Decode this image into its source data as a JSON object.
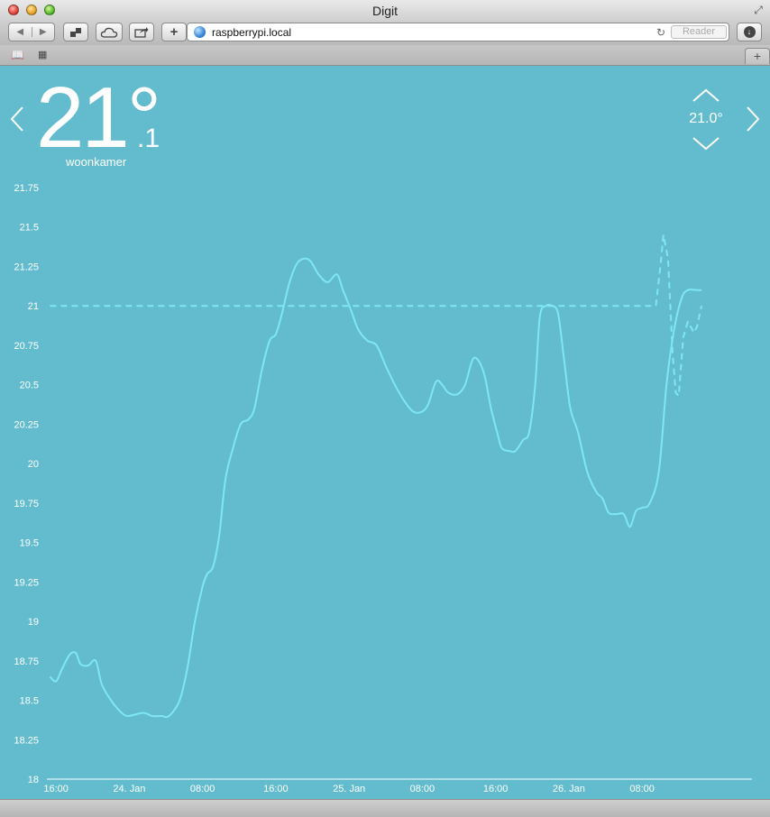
{
  "window": {
    "title": "Digit"
  },
  "toolbar": {
    "url": "raspberrypi.local",
    "reader_label": "Reader"
  },
  "thermostat": {
    "current_integer": "21°",
    "current_fraction": ".1",
    "room": "woonkamer",
    "setpoint": "21.0°"
  },
  "icons": {
    "prev": "chevron-left-icon",
    "next": "chevron-right-icon",
    "setpoint_up": "chevron-up-icon",
    "setpoint_down": "chevron-down-icon"
  },
  "colors": {
    "background": "#62bccd",
    "measured_line": "#7fe6f6",
    "setpoint_line": "#7fe6f6",
    "text": "#ffffff"
  },
  "chart_data": {
    "type": "line",
    "ylim": [
      18,
      21.75
    ],
    "y_ticks": [
      "18",
      "18.25",
      "18.5",
      "18.75",
      "19",
      "19.25",
      "19.5",
      "19.75",
      "20",
      "20.25",
      "20.5",
      "20.75",
      "21",
      "21.25",
      "21.5",
      "21.75"
    ],
    "x_axis_type": "datetime",
    "xlim": [
      "2014-01-23T15:00",
      "2014-01-26T20:00"
    ],
    "x_ticks": [
      {
        "label": "16:00",
        "t": "2014-01-23T16:00"
      },
      {
        "label": "24. Jan",
        "t": "2014-01-24T00:00"
      },
      {
        "label": "08:00",
        "t": "2014-01-24T08:00"
      },
      {
        "label": "16:00",
        "t": "2014-01-24T16:00"
      },
      {
        "label": "25. Jan",
        "t": "2014-01-25T00:00"
      },
      {
        "label": "08:00",
        "t": "2014-01-25T08:00"
      },
      {
        "label": "16:00",
        "t": "2014-01-25T16:00"
      },
      {
        "label": "26. Jan",
        "t": "2014-01-26T00:00"
      },
      {
        "label": "08:00",
        "t": "2014-01-26T08:00"
      }
    ],
    "grid": false,
    "series": [
      {
        "style": "solid",
        "points": [
          [
            "2014-01-23T15:20",
            18.65
          ],
          [
            "2014-01-23T16:00",
            18.62
          ],
          [
            "2014-01-23T16:40",
            18.7
          ],
          [
            "2014-01-23T17:30",
            18.79
          ],
          [
            "2014-01-23T18:10",
            18.8
          ],
          [
            "2014-01-23T18:40",
            18.73
          ],
          [
            "2014-01-23T19:30",
            18.72
          ],
          [
            "2014-01-23T20:20",
            18.75
          ],
          [
            "2014-01-23T21:00",
            18.6
          ],
          [
            "2014-01-23T22:00",
            18.5
          ],
          [
            "2014-01-23T23:00",
            18.43
          ],
          [
            "2014-01-23T23:50",
            18.4
          ],
          [
            "2014-01-24T01:30",
            18.42
          ],
          [
            "2014-01-24T02:30",
            18.4
          ],
          [
            "2014-01-24T03:30",
            18.4
          ],
          [
            "2014-01-24T04:20",
            18.4
          ],
          [
            "2014-01-24T05:30",
            18.5
          ],
          [
            "2014-01-24T06:20",
            18.7
          ],
          [
            "2014-01-24T07:10",
            19.0
          ],
          [
            "2014-01-24T08:00",
            19.22
          ],
          [
            "2014-01-24T08:30",
            19.3
          ],
          [
            "2014-01-24T09:10",
            19.35
          ],
          [
            "2014-01-24T09:50",
            19.55
          ],
          [
            "2014-01-24T10:30",
            19.9
          ],
          [
            "2014-01-24T11:20",
            20.1
          ],
          [
            "2014-01-24T12:10",
            20.25
          ],
          [
            "2014-01-24T13:00",
            20.28
          ],
          [
            "2014-01-24T13:40",
            20.35
          ],
          [
            "2014-01-24T14:30",
            20.6
          ],
          [
            "2014-01-24T15:20",
            20.78
          ],
          [
            "2014-01-24T16:00",
            20.82
          ],
          [
            "2014-01-24T16:40",
            20.95
          ],
          [
            "2014-01-24T17:30",
            21.15
          ],
          [
            "2014-01-24T18:20",
            21.27
          ],
          [
            "2014-01-24T19:10",
            21.3
          ],
          [
            "2014-01-24T19:50",
            21.28
          ],
          [
            "2014-01-24T20:40",
            21.2
          ],
          [
            "2014-01-24T21:40",
            21.15
          ],
          [
            "2014-01-24T22:40",
            21.2
          ],
          [
            "2014-01-24T23:20",
            21.1
          ],
          [
            "2014-01-25T00:10",
            20.98
          ],
          [
            "2014-01-25T01:00",
            20.85
          ],
          [
            "2014-01-25T02:00",
            20.78
          ],
          [
            "2014-01-25T03:00",
            20.75
          ],
          [
            "2014-01-25T04:00",
            20.62
          ],
          [
            "2014-01-25T05:00",
            20.5
          ],
          [
            "2014-01-25T06:00",
            20.4
          ],
          [
            "2014-01-25T07:00",
            20.33
          ],
          [
            "2014-01-25T08:00",
            20.33
          ],
          [
            "2014-01-25T08:40",
            20.38
          ],
          [
            "2014-01-25T09:30",
            20.52
          ],
          [
            "2014-01-25T10:10",
            20.5
          ],
          [
            "2014-01-25T10:50",
            20.45
          ],
          [
            "2014-01-25T11:50",
            20.44
          ],
          [
            "2014-01-25T12:40",
            20.5
          ],
          [
            "2014-01-25T13:30",
            20.66
          ],
          [
            "2014-01-25T14:10",
            20.65
          ],
          [
            "2014-01-25T14:50",
            20.55
          ],
          [
            "2014-01-25T15:30",
            20.35
          ],
          [
            "2014-01-25T16:10",
            20.2
          ],
          [
            "2014-01-25T16:40",
            20.1
          ],
          [
            "2014-01-25T17:30",
            20.08
          ],
          [
            "2014-01-25T18:10",
            20.08
          ],
          [
            "2014-01-25T19:00",
            20.15
          ],
          [
            "2014-01-25T19:40",
            20.2
          ],
          [
            "2014-01-25T20:20",
            20.5
          ],
          [
            "2014-01-25T20:50",
            20.93
          ],
          [
            "2014-01-25T21:30",
            21.0
          ],
          [
            "2014-01-25T22:10",
            21.0
          ],
          [
            "2014-01-25T22:50",
            20.95
          ],
          [
            "2014-01-25T23:30",
            20.65
          ],
          [
            "2014-01-26T00:10",
            20.35
          ],
          [
            "2014-01-26T01:00",
            20.2
          ],
          [
            "2014-01-26T02:00",
            19.95
          ],
          [
            "2014-01-26T03:00",
            19.82
          ],
          [
            "2014-01-26T03:40",
            19.78
          ],
          [
            "2014-01-26T04:20",
            19.69
          ],
          [
            "2014-01-26T05:10",
            19.68
          ],
          [
            "2014-01-26T06:00",
            19.68
          ],
          [
            "2014-01-26T06:40",
            19.6
          ],
          [
            "2014-01-26T07:20",
            19.7
          ],
          [
            "2014-01-26T08:00",
            19.72
          ],
          [
            "2014-01-26T08:50",
            19.75
          ],
          [
            "2014-01-26T09:50",
            19.95
          ],
          [
            "2014-01-26T10:40",
            20.5
          ],
          [
            "2014-01-26T11:30",
            20.85
          ],
          [
            "2014-01-26T12:20",
            21.05
          ],
          [
            "2014-01-26T13:00",
            21.1
          ],
          [
            "2014-01-26T14:00",
            21.1
          ],
          [
            "2014-01-26T14:30",
            21.1
          ]
        ]
      },
      {
        "style": "dashed",
        "points": [
          [
            "2014-01-23T15:20",
            21.0
          ],
          [
            "2014-01-26T09:30",
            21.0
          ],
          [
            "2014-01-26T10:00",
            21.25
          ],
          [
            "2014-01-26T10:20",
            21.45
          ],
          [
            "2014-01-26T10:50",
            21.3
          ],
          [
            "2014-01-26T11:20",
            20.7
          ],
          [
            "2014-01-26T11:40",
            20.45
          ],
          [
            "2014-01-26T12:00",
            20.43
          ],
          [
            "2014-01-26T12:30",
            20.8
          ],
          [
            "2014-01-26T13:00",
            20.9
          ],
          [
            "2014-01-26T13:40",
            20.83
          ],
          [
            "2014-01-26T14:00",
            20.87
          ],
          [
            "2014-01-26T14:30",
            21.0
          ]
        ]
      }
    ]
  }
}
